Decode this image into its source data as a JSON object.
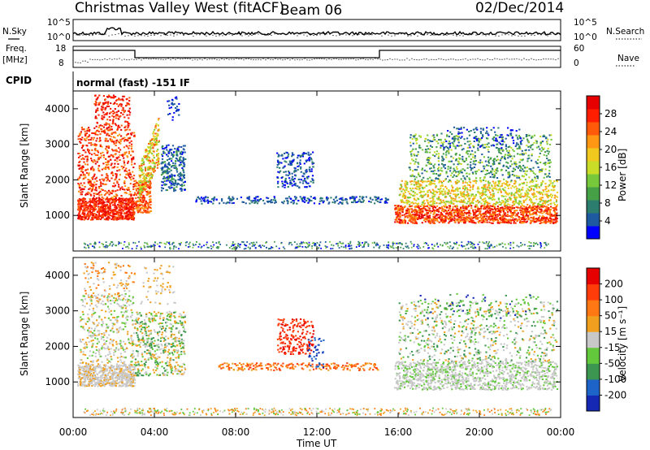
{
  "header": {
    "site": "Christmas Valley West (fitACF)",
    "beam": "Beam 06",
    "date": "02/Dec/2014"
  },
  "top_panels": {
    "nsky_label": "N.Sky",
    "nsky_ticks": [
      "10^5",
      "10^0"
    ],
    "nsearch_label": "N.Search",
    "nsearch_ticks": [
      "10^5",
      "10^0"
    ],
    "freq_label_1": "Freq.",
    "freq_label_2": "[MHz]",
    "freq_ticks": [
      "18",
      "8"
    ],
    "nave_label": "Nave",
    "nave_ticks": [
      "60",
      "0"
    ],
    "cpid_label": "CPID",
    "cpid_text": "normal (fast) -151 IF"
  },
  "chart_data": [
    {
      "type": "heatmap",
      "title": "",
      "quantity": "Power",
      "ylabel": "Slant Range [km]",
      "ylim": [
        0,
        4500
      ],
      "yticks": [
        "4000",
        "3000",
        "2000",
        "1000"
      ],
      "colorbar_label": "Power [dB]",
      "colorbar_ticks": [
        "28",
        "24",
        "20",
        "16",
        "12",
        "8",
        "4"
      ],
      "colors": [
        "#0000ff",
        "#1e5aa0",
        "#2d7d6e",
        "#46a046",
        "#78c83c",
        "#c8dc28",
        "#f0c81e",
        "#ff9614",
        "#ff5a0a",
        "#ff1e00",
        "#e60000"
      ],
      "regions": [
        {
          "t": [
            0.0,
            3.0
          ],
          "range": [
            900,
            4400
          ],
          "level": "high"
        },
        {
          "t": [
            3.0,
            5.5
          ],
          "range": [
            1300,
            4400
          ],
          "level": "mixed"
        },
        {
          "t": [
            10.0,
            12.0
          ],
          "range": [
            1200,
            2800
          ],
          "level": "low"
        },
        {
          "t": [
            15.8,
            24.0
          ],
          "range": [
            800,
            3500
          ],
          "level": "high"
        }
      ]
    },
    {
      "type": "heatmap",
      "title": "",
      "quantity": "Velocity",
      "ylabel": "Slant Range [km]",
      "ylim": [
        0,
        4500
      ],
      "yticks": [
        "4000",
        "3000",
        "2000",
        "1000"
      ],
      "xlabel": "Time UT",
      "xticks": [
        "00:00",
        "04:00",
        "08:00",
        "12:00",
        "16:00",
        "20:00",
        "00:00"
      ],
      "colorbar_label": "Velocity [m s⁻¹]",
      "colorbar_ticks": [
        "200",
        "100",
        "50",
        "15",
        "-15",
        "-50",
        "-100",
        "-200"
      ],
      "colors": [
        "#1428b4",
        "#1e64c8",
        "#3c9650",
        "#64c83c",
        "#c8c8c8",
        "#f0a01e",
        "#ff7814",
        "#ff3c0a",
        "#e60000"
      ]
    }
  ],
  "axis": {
    "xlabel": "Time UT",
    "xticks": [
      "00:00",
      "04:00",
      "08:00",
      "12:00",
      "16:00",
      "20:00",
      "00:00"
    ]
  }
}
